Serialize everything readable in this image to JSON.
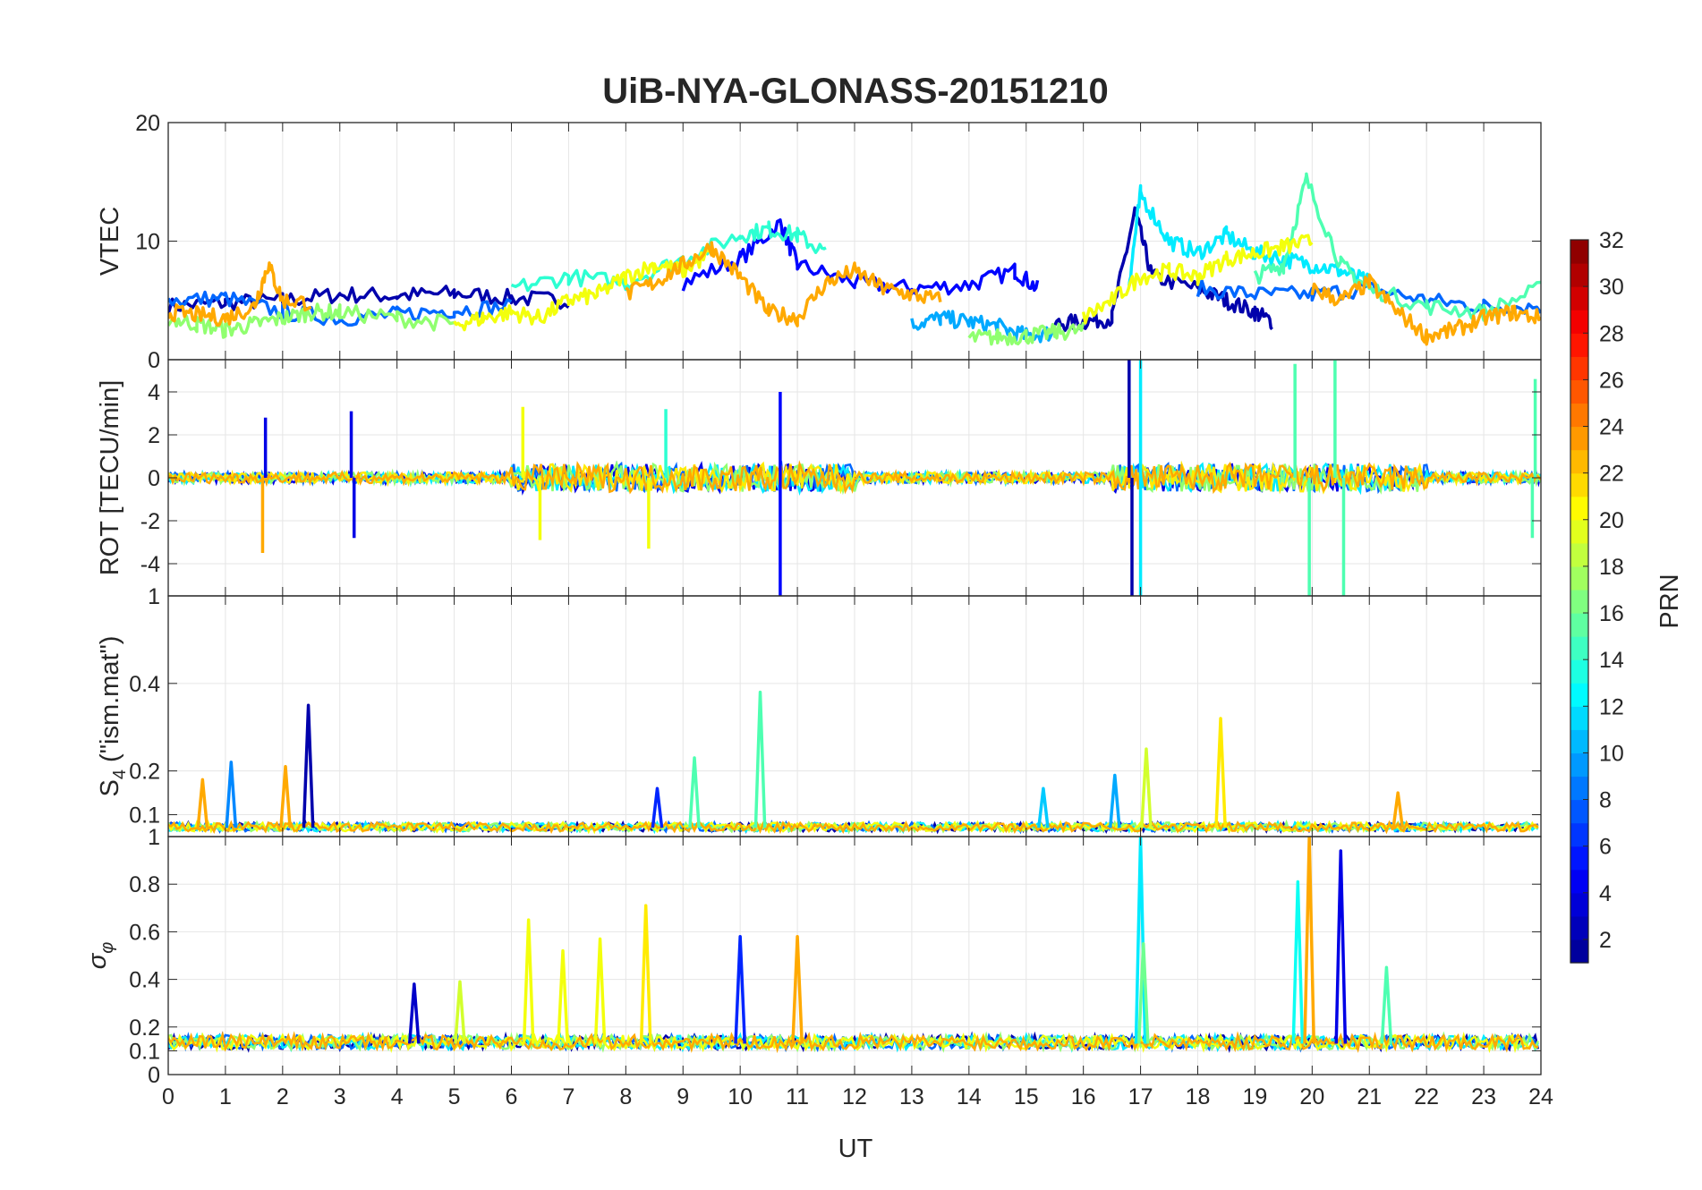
{
  "title": "UiB-NYA-GLONASS-20151210",
  "colorscale": [
    "#00008f",
    "#0000ff",
    "#0080ff",
    "#00ffff",
    "#80ff80",
    "#ffff00",
    "#ff8000",
    "#ff0000",
    "#800000"
  ],
  "xaxis": {
    "label": "UT",
    "ticks": [
      "0",
      "1",
      "2",
      "3",
      "4",
      "5",
      "6",
      "7",
      "8",
      "9",
      "10",
      "11",
      "12",
      "13",
      "14",
      "15",
      "16",
      "17",
      "18",
      "19",
      "20",
      "21",
      "22",
      "23",
      "24"
    ],
    "range": [
      0,
      24
    ]
  },
  "colorbar": {
    "label": "PRN",
    "ticks": [
      "2",
      "4",
      "6",
      "8",
      "10",
      "12",
      "14",
      "16",
      "18",
      "20",
      "22",
      "24",
      "26",
      "28",
      "30",
      "32"
    ],
    "range": [
      1,
      32
    ]
  },
  "panels": [
    {
      "id": "vtec",
      "ylabel": "VTEC",
      "yrange": [
        0,
        20
      ],
      "ticks": [
        {
          "v": 0,
          "t": "0"
        },
        {
          "v": 10,
          "t": "10"
        },
        {
          "v": 20,
          "t": "20"
        }
      ]
    },
    {
      "id": "rot",
      "ylabel": "ROT [TECU/min]",
      "yrange": [
        -5.5,
        5.5
      ],
      "ticks": [
        {
          "v": -4,
          "t": "-4"
        },
        {
          "v": -2,
          "t": "-2"
        },
        {
          "v": 0,
          "t": "0"
        },
        {
          "v": 2,
          "t": "2"
        },
        {
          "v": 4,
          "t": "4"
        }
      ]
    },
    {
      "id": "s4",
      "ylabel": "S4 (\"ism.mat\")",
      "ylabel_main": "S",
      "ylabel_sub": "4",
      "ylabel_rest": " (\"ism.mat\")",
      "yrange": [
        0.05,
        0.6
      ],
      "ticks": [
        {
          "v": 0.1,
          "t": "0.1"
        },
        {
          "v": 0.2,
          "t": "0.2"
        },
        {
          "v": 0.4,
          "t": "0.4"
        }
      ],
      "top_tick": "1"
    },
    {
      "id": "sigma",
      "ylabel": "σφ",
      "ylabel_main": "σ",
      "ylabel_sub": "φ",
      "yrange": [
        0,
        1
      ],
      "ticks": [
        {
          "v": 0,
          "t": "0"
        },
        {
          "v": 0.1,
          "t": "0.1"
        },
        {
          "v": 0.2,
          "t": "0.2"
        },
        {
          "v": 0.4,
          "t": "0.4"
        },
        {
          "v": 0.6,
          "t": "0.6"
        },
        {
          "v": 0.8,
          "t": "0.8"
        },
        {
          "v": 1,
          "t": "1"
        }
      ]
    }
  ],
  "chart_data": [
    {
      "type": "line",
      "title": "UiB-NYA-GLONASS-20151210",
      "xlabel": "UT",
      "ylabel": "VTEC",
      "xlim": [
        0,
        24
      ],
      "ylim": [
        0,
        20
      ],
      "grid": true,
      "color_by": "PRN",
      "series": [
        {
          "prn": 2,
          "x": [
            0,
            1,
            2,
            3,
            4,
            5,
            6,
            7
          ],
          "y": [
            4.5,
            4.8,
            5.0,
            5.5,
            5.4,
            5.6,
            5.2,
            5.0
          ]
        },
        {
          "prn": 5,
          "x": [
            9,
            10,
            10.7,
            11,
            12,
            13,
            14,
            14.8,
            15.2
          ],
          "y": [
            6.5,
            8.5,
            11.5,
            8.0,
            6.5,
            6.0,
            6.3,
            7.5,
            6.0
          ]
        },
        {
          "prn": 2,
          "x": [
            15.5,
            16,
            16.5,
            16.9,
            17.2,
            18,
            18.5,
            19,
            19.3
          ],
          "y": [
            3.0,
            3.2,
            3.5,
            12.5,
            7.0,
            6.0,
            5.0,
            4.0,
            3.2
          ]
        },
        {
          "prn": 8,
          "x": [
            0,
            1,
            2,
            3,
            4,
            5,
            6
          ],
          "y": [
            5.0,
            5.2,
            4.0,
            3.5,
            3.8,
            4.2,
            4.5
          ]
        },
        {
          "prn": 8,
          "x": [
            18,
            19,
            20,
            21,
            22,
            23,
            24
          ],
          "y": [
            6.0,
            5.5,
            5.5,
            6.0,
            5.0,
            4.5,
            4.5
          ]
        },
        {
          "prn": 10,
          "x": [
            13,
            13.5,
            14,
            14.5,
            15,
            15.5
          ],
          "y": [
            3.0,
            3.5,
            3.2,
            2.8,
            2.0,
            2.3
          ]
        },
        {
          "prn": 12,
          "x": [
            16.8,
            17,
            17.5,
            18,
            18.5,
            19,
            19.5,
            20,
            20.5,
            21
          ],
          "y": [
            6.5,
            14.0,
            10.0,
            9.0,
            10.5,
            9.0,
            8.5,
            8.0,
            7.5,
            6.5
          ]
        },
        {
          "prn": 14,
          "x": [
            6,
            7,
            8,
            9,
            10,
            10.5,
            11,
            11.5
          ],
          "y": [
            6.0,
            7.0,
            6.5,
            8.5,
            10.5,
            11.0,
            10.5,
            9.0
          ]
        },
        {
          "prn": 15,
          "x": [
            19,
            19.5,
            19.9,
            20.5,
            21,
            22,
            23,
            24
          ],
          "y": [
            7.0,
            8.0,
            15.2,
            8.0,
            6.0,
            4.5,
            4.0,
            6.0
          ]
        },
        {
          "prn": 17,
          "x": [
            0,
            0.5,
            1,
            1.5,
            2,
            2.5,
            3,
            4,
            5
          ],
          "y": [
            3.5,
            3.0,
            2.5,
            3.0,
            3.5,
            4.0,
            4.0,
            3.5,
            3.0
          ]
        },
        {
          "prn": 17,
          "x": [
            14,
            14.5,
            15,
            15.5,
            16
          ],
          "y": [
            1.8,
            1.9,
            2.0,
            2.3,
            2.5
          ]
        },
        {
          "prn": 20,
          "x": [
            5,
            5.5,
            6,
            6.5,
            7,
            7.5,
            8,
            8.5,
            9,
            9.5
          ],
          "y": [
            3.0,
            3.5,
            4.0,
            3.5,
            5.0,
            5.5,
            7.0,
            8.0,
            7.5,
            9.0
          ]
        },
        {
          "prn": 20,
          "x": [
            16,
            16.5,
            17,
            17.5,
            18,
            18.5,
            19,
            19.5,
            20
          ],
          "y": [
            3.5,
            5.0,
            7.0,
            7.5,
            7.0,
            8.5,
            9.0,
            9.5,
            10.0
          ]
        },
        {
          "prn": 23,
          "x": [
            0,
            0.5,
            1,
            1.5,
            1.75,
            2,
            2.5
          ],
          "y": [
            4.0,
            3.8,
            3.5,
            4.5,
            8.0,
            5.0,
            4.8
          ]
        },
        {
          "prn": 23,
          "x": [
            8,
            8.5,
            9,
            9.5,
            10,
            10.5,
            11,
            11.5,
            12,
            12.5,
            13,
            13.5
          ],
          "y": [
            5.5,
            6.5,
            8.0,
            9.5,
            7.0,
            4.0,
            3.5,
            6.5,
            7.5,
            6.0,
            5.5,
            5.0
          ]
        },
        {
          "prn": 23,
          "x": [
            20,
            20.5,
            21,
            21.5,
            22,
            22.5,
            23,
            23.5,
            24
          ],
          "y": [
            6.0,
            5.0,
            6.5,
            4.0,
            2.0,
            2.5,
            3.5,
            4.0,
            3.5
          ]
        }
      ]
    },
    {
      "type": "line",
      "ylabel": "ROT [TECU/min]",
      "xlabel": "UT",
      "xlim": [
        0,
        24
      ],
      "ylim": [
        -5.5,
        5.5
      ],
      "grid": true,
      "color_by": "PRN",
      "description_values": "noise around 0; spikes",
      "spikes": [
        {
          "prn": 4,
          "x": 1.7,
          "y": 2.8
        },
        {
          "prn": 23,
          "x": 1.65,
          "y": -3.5
        },
        {
          "prn": 4,
          "x": 3.2,
          "y": 3.1
        },
        {
          "prn": 4,
          "x": 3.25,
          "y": -2.8
        },
        {
          "prn": 20,
          "x": 6.2,
          "y": 3.3
        },
        {
          "prn": 20,
          "x": 6.5,
          "y": -2.9
        },
        {
          "prn": 5,
          "x": 10.7,
          "y": 4.0
        },
        {
          "prn": 5,
          "x": 10.7,
          "y": -5.5
        },
        {
          "prn": 20,
          "x": 8.4,
          "y": -3.3
        },
        {
          "prn": 14,
          "x": 8.7,
          "y": 3.2
        },
        {
          "prn": 2,
          "x": 16.8,
          "y": 5.5
        },
        {
          "prn": 2,
          "x": 16.85,
          "y": -5.5
        },
        {
          "prn": 12,
          "x": 17.0,
          "y": 5.5
        },
        {
          "prn": 12,
          "x": 17.0,
          "y": -5.5
        },
        {
          "prn": 15,
          "x": 19.7,
          "y": 5.3
        },
        {
          "prn": 15,
          "x": 19.95,
          "y": -5.5
        },
        {
          "prn": 15,
          "x": 20.4,
          "y": 5.5
        },
        {
          "prn": 15,
          "x": 20.55,
          "y": -5.5
        },
        {
          "prn": 15,
          "x": 23.9,
          "y": 4.6
        },
        {
          "prn": 15,
          "x": 23.85,
          "y": -2.8
        }
      ]
    },
    {
      "type": "line",
      "ylabel": "S4 (\"ism.mat\")",
      "xlabel": "UT",
      "xlim": [
        0,
        24
      ],
      "ylim": [
        0.05,
        0.6
      ],
      "grid": true,
      "color_by": "PRN",
      "baseline": 0.07,
      "peaks": [
        {
          "prn": 9,
          "x": 1.1,
          "y": 0.22
        },
        {
          "prn": 23,
          "x": 0.6,
          "y": 0.18
        },
        {
          "prn": 23,
          "x": 2.05,
          "y": 0.21
        },
        {
          "prn": 2,
          "x": 2.45,
          "y": 0.35
        },
        {
          "prn": 6,
          "x": 8.55,
          "y": 0.16
        },
        {
          "prn": 15,
          "x": 9.2,
          "y": 0.23
        },
        {
          "prn": 15,
          "x": 10.35,
          "y": 0.38
        },
        {
          "prn": 11,
          "x": 15.3,
          "y": 0.16
        },
        {
          "prn": 10,
          "x": 16.55,
          "y": 0.19
        },
        {
          "prn": 19,
          "x": 17.1,
          "y": 0.25
        },
        {
          "prn": 21,
          "x": 18.4,
          "y": 0.32
        },
        {
          "prn": 23,
          "x": 21.5,
          "y": 0.15
        }
      ]
    },
    {
      "type": "line",
      "ylabel": "σφ",
      "xlabel": "UT",
      "xlim": [
        0,
        24
      ],
      "ylim": [
        0,
        1
      ],
      "grid": true,
      "color_by": "PRN",
      "baseline": 0.13,
      "peaks": [
        {
          "prn": 3,
          "x": 4.3,
          "y": 0.38
        },
        {
          "prn": 19,
          "x": 5.1,
          "y": 0.39
        },
        {
          "prn": 20,
          "x": 6.3,
          "y": 0.65
        },
        {
          "prn": 20,
          "x": 6.9,
          "y": 0.52
        },
        {
          "prn": 20,
          "x": 7.55,
          "y": 0.57
        },
        {
          "prn": 21,
          "x": 8.35,
          "y": 0.71
        },
        {
          "prn": 6,
          "x": 10.0,
          "y": 0.58
        },
        {
          "prn": 23,
          "x": 11.0,
          "y": 0.58
        },
        {
          "prn": 12,
          "x": 17.0,
          "y": 1.0
        },
        {
          "prn": 16,
          "x": 17.05,
          "y": 0.55
        },
        {
          "prn": 13,
          "x": 19.75,
          "y": 0.81
        },
        {
          "prn": 23,
          "x": 19.95,
          "y": 1.0
        },
        {
          "prn": 4,
          "x": 20.5,
          "y": 0.94
        },
        {
          "prn": 15,
          "x": 21.3,
          "y": 0.45
        }
      ]
    }
  ]
}
